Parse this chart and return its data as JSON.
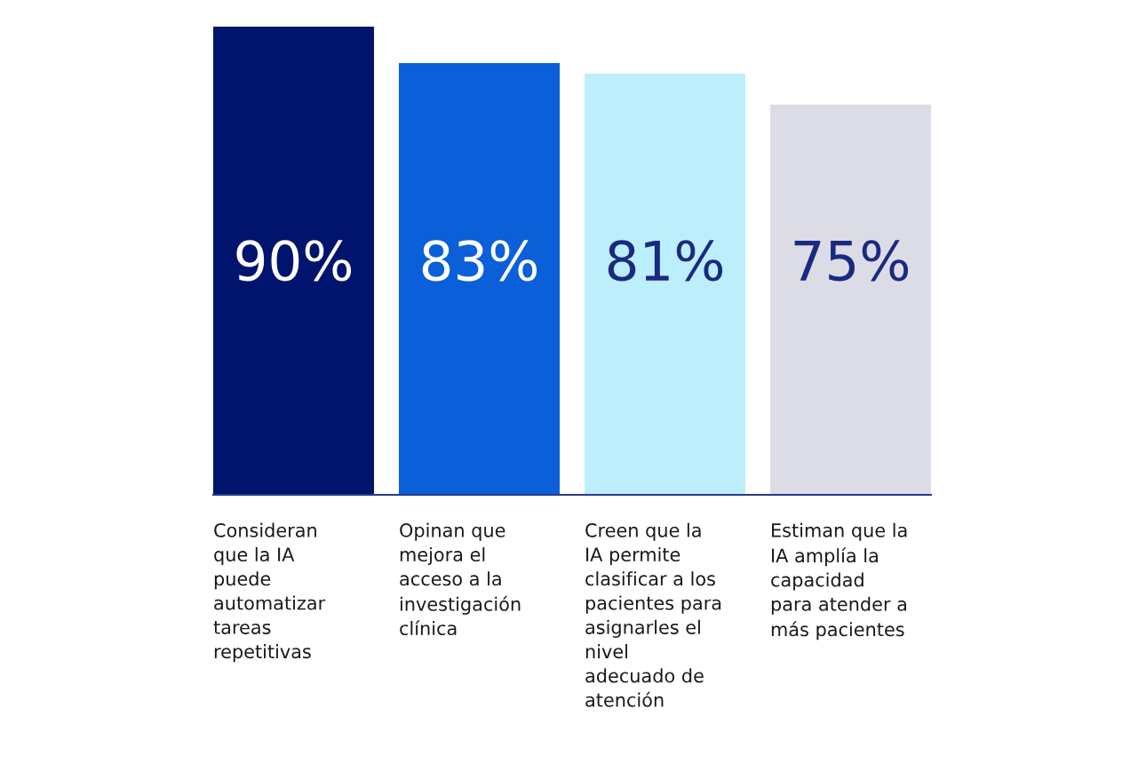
{
  "chart_data": {
    "type": "bar",
    "categories": [
      "Consideran\nque la IA\npuede\nautomatizar\ntareas\nrepetitivas",
      "Opinan que\nmejora el\nacceso a la\ninvestigación\nclínica",
      "Creen que la\nIA permite\nclasificar a los\npacientes para\nasignarles el\nnivel\nadecuado de\natención",
      "Estiman que la\nIA amplía la\ncapacidad\npara atender a\nmás pacientes"
    ],
    "values": [
      90,
      83,
      81,
      75
    ],
    "value_labels": [
      "90%",
      "83%",
      "81%",
      "75%"
    ],
    "colors": [
      "#00146e",
      "#0b5fd8",
      "#bdeefc",
      "#dcdce6"
    ]
  }
}
